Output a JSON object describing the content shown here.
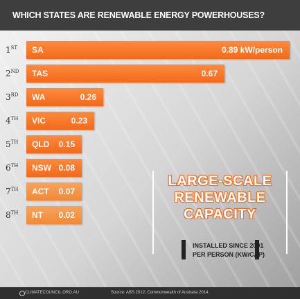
{
  "header": {
    "title": "WHICH STATES ARE RENEWABLE ENERGY POWERHOUSES?"
  },
  "chart_data": {
    "type": "bar",
    "orientation": "horizontal",
    "title": "WHICH STATES ARE RENEWABLE ENERGY POWERHOUSES?",
    "unit": "kW/person",
    "categories": [
      "SA",
      "TAS",
      "WA",
      "VIC",
      "QLD",
      "NSW",
      "ACT",
      "NT"
    ],
    "ranks": [
      "1ST",
      "2ND",
      "3RD",
      "4TH",
      "5TH",
      "6TH",
      "7TH",
      "8TH"
    ],
    "values": [
      0.89,
      0.67,
      0.26,
      0.23,
      0.15,
      0.08,
      0.07,
      0.02
    ],
    "value_labels": [
      "0.89 kW/person",
      "0.67",
      "0.26",
      "0.23",
      "0.15",
      "0.08",
      "0.07",
      "0.02"
    ],
    "bar_color": "#f26a1b"
  },
  "callout": {
    "line1": "LARGE-SCALE",
    "line2": "RENEWABLE",
    "line3": "CAPACITY",
    "sub1": "INSTALLED SINCE 2001",
    "sub2": "PER PERSON (KW/CAP)"
  },
  "footer": {
    "site": "CLIMATECOUNCIL.ORG.AU",
    "source": "Source: ABS 2012; Commonwealth of Australia 2014."
  }
}
